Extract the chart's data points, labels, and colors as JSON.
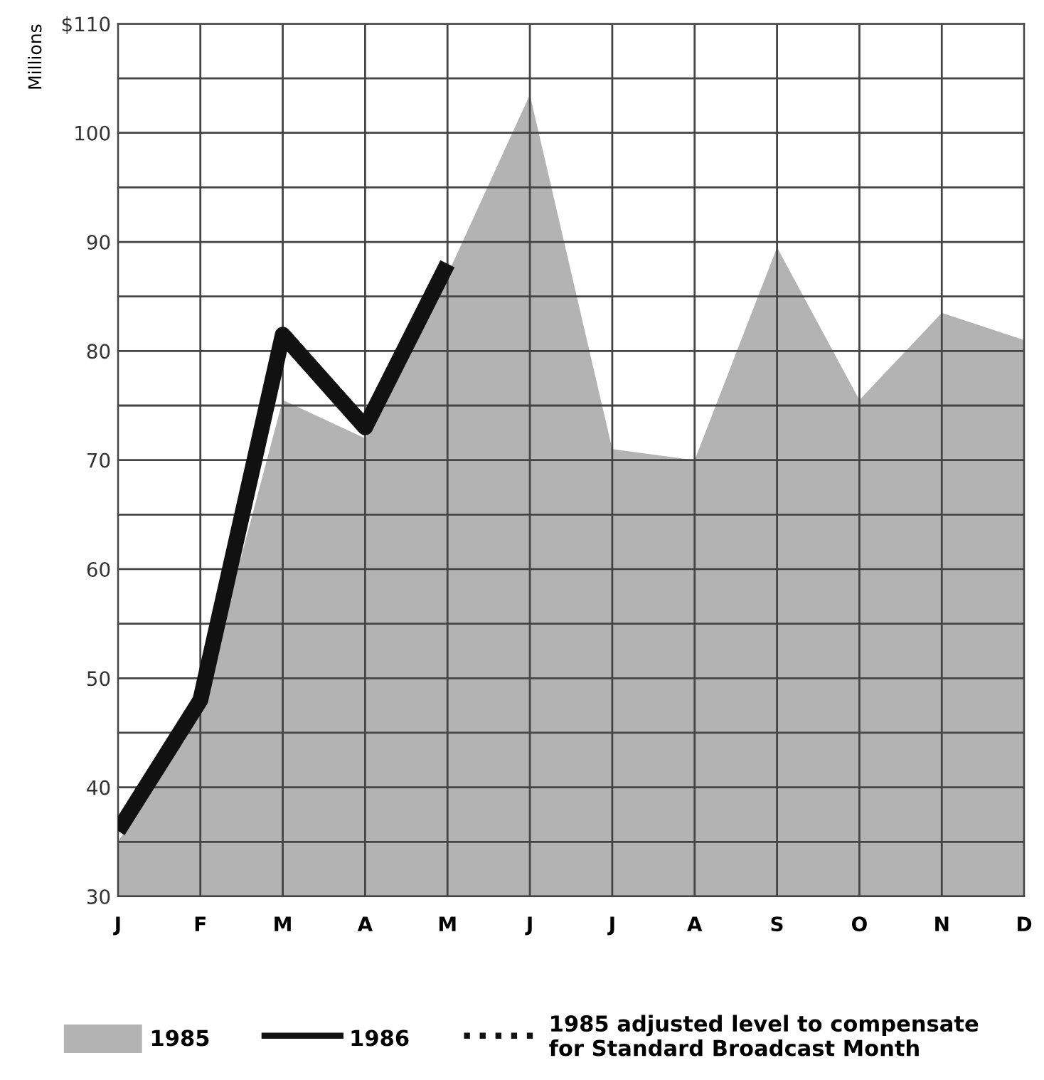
{
  "chart_data": {
    "type": "area",
    "ylabel": "Millions",
    "categories": [
      "J",
      "F",
      "M",
      "A",
      "M",
      "J",
      "J",
      "A",
      "S",
      "O",
      "N",
      "D"
    ],
    "series": [
      {
        "name": "1985",
        "color": "#b3b3b3",
        "values": [
          35,
          47,
          75.5,
          72,
          87,
          103.5,
          71,
          70,
          89.5,
          75.5,
          83.5,
          81
        ]
      },
      {
        "name": "1986",
        "type": "line",
        "color": "#111111",
        "line_style": "solid",
        "values": [
          36,
          48,
          81.5,
          73,
          88,
          null,
          null,
          null,
          null,
          null,
          null,
          null
        ]
      },
      {
        "name": "1985 adjusted level to compensate\nfor Standard Broadcast Month",
        "type": "line",
        "color": "#111111",
        "line_style": "dotted",
        "values": [
          null,
          null,
          null,
          null,
          null,
          null,
          null,
          null,
          null,
          null,
          null,
          null
        ]
      }
    ],
    "ylim": [
      30,
      110
    ],
    "yticks": [
      30,
      {
        "value": 35,
        "label": null
      },
      40,
      {
        "value": 45,
        "label": null
      },
      50,
      {
        "value": 55,
        "label": null
      },
      60,
      {
        "value": 65,
        "label": null
      },
      70,
      {
        "value": 75,
        "label": null
      },
      80,
      {
        "value": 85,
        "label": null
      },
      90,
      {
        "value": 95,
        "label": null
      },
      100,
      {
        "value": 105,
        "label": null
      },
      {
        "value": 110,
        "label": "$110"
      }
    ],
    "grid": true,
    "legend": "bottom"
  }
}
